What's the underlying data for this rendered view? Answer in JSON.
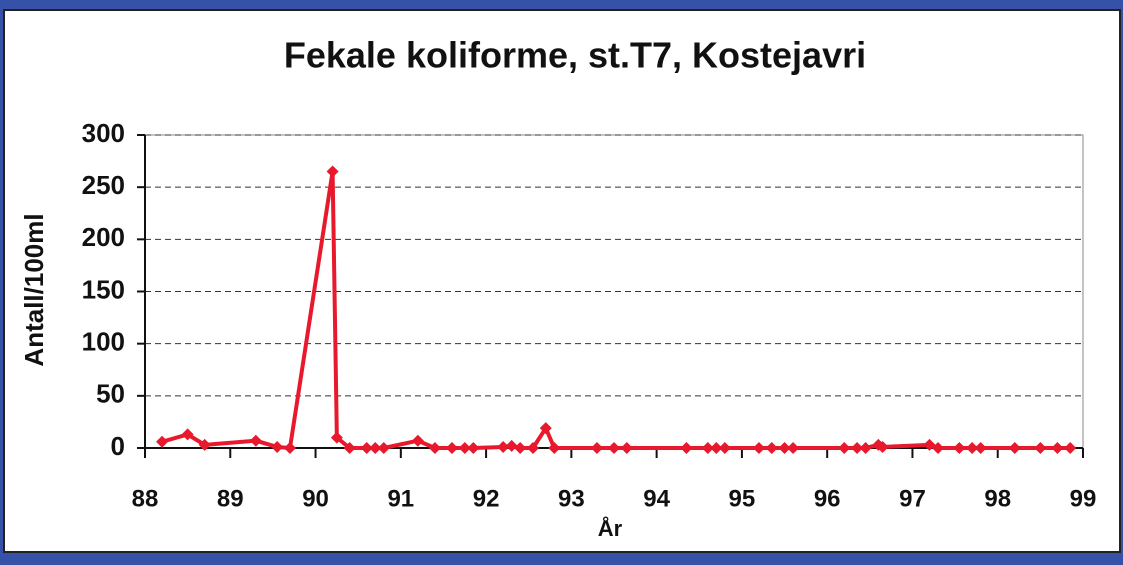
{
  "chart_data": {
    "type": "line",
    "title": "Fekale koliforme, st.T7, Kostejavri",
    "x_label": "År",
    "y_label": "Antall/100ml",
    "x": [
      88.2,
      88.5,
      88.7,
      89.3,
      89.55,
      89.7,
      90.2,
      90.25,
      90.4,
      90.6,
      90.7,
      90.8,
      91.2,
      91.4,
      91.6,
      91.75,
      91.85,
      92.2,
      92.3,
      92.4,
      92.55,
      92.7,
      92.8,
      93.3,
      93.5,
      93.65,
      94.35,
      94.6,
      94.7,
      94.8,
      95.2,
      95.35,
      95.5,
      95.6,
      96.2,
      96.35,
      96.45,
      96.6,
      96.65,
      97.2,
      97.3,
      97.55,
      97.7,
      97.8,
      98.2,
      98.5,
      98.7,
      98.85
    ],
    "series": [
      {
        "name": "Fekale koliforme",
        "color": "#e8192c",
        "values": [
          6,
          13,
          3,
          7,
          1,
          0,
          265,
          10,
          0,
          0,
          0,
          0,
          7,
          0,
          0,
          0,
          0,
          1,
          2,
          0,
          0,
          19,
          0,
          0,
          0,
          0,
          0,
          0,
          0,
          0,
          0,
          0,
          0,
          0,
          0,
          0,
          0,
          3,
          1,
          3,
          0,
          0,
          0,
          0,
          0,
          0,
          0,
          0
        ]
      }
    ],
    "xlim": [
      88,
      99
    ],
    "xticks": [
      88,
      89,
      90,
      91,
      92,
      93,
      94,
      95,
      96,
      97,
      98,
      99
    ],
    "ylim": [
      0,
      300
    ],
    "yticks": [
      0,
      50,
      100,
      150,
      200,
      250,
      300
    ],
    "grid": true
  }
}
